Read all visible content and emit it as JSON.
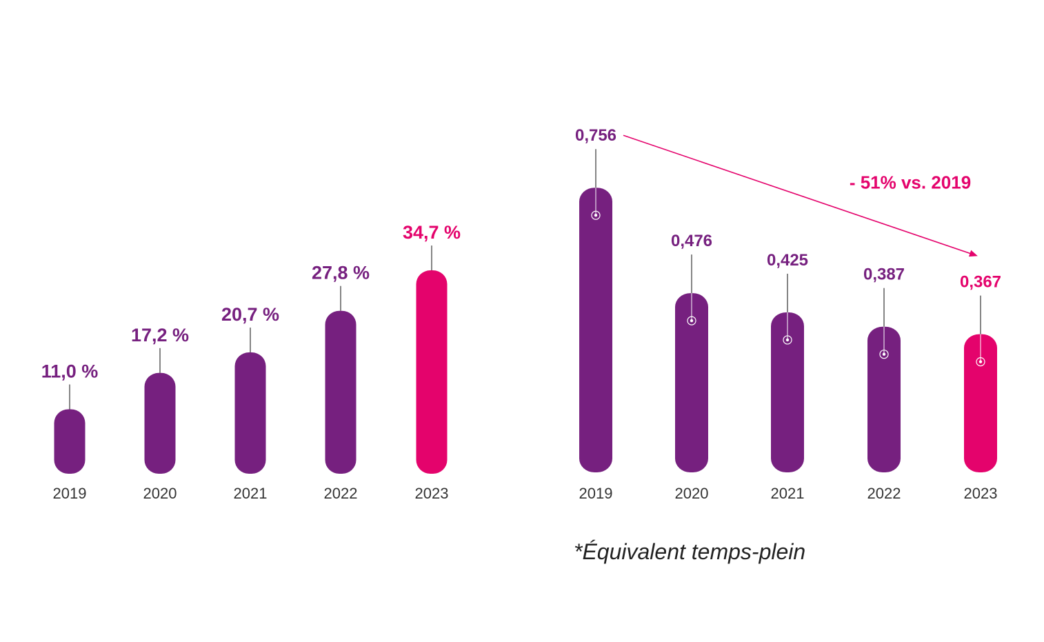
{
  "colors": {
    "bar": "#76207f",
    "highlight": "#e4036c",
    "tick": "#333333",
    "connector": "#333333"
  },
  "chart_data": [
    {
      "type": "bar",
      "categories": [
        "2019",
        "2020",
        "2021",
        "2022",
        "2023"
      ],
      "values": [
        11.0,
        17.2,
        20.7,
        27.8,
        34.7
      ],
      "data_labels": [
        "11,0 %",
        "17,2 %",
        "20,7 %",
        "27,8 %",
        "34,7 %"
      ],
      "highlight_index": 4,
      "ylim": [
        0,
        35
      ],
      "grid": false
    },
    {
      "type": "bar",
      "categories": [
        "2019",
        "2020",
        "2021",
        "2022",
        "2023"
      ],
      "values": [
        0.756,
        0.476,
        0.425,
        0.387,
        0.367
      ],
      "data_labels": [
        "0,756",
        "0,476",
        "0,425",
        "0,387",
        "0,367"
      ],
      "highlight_index": 4,
      "ylim": [
        0,
        0.756
      ],
      "grid": false,
      "annotation": {
        "text": "- 51% vs. 2019",
        "from_category": "2019",
        "to_category": "2023"
      }
    }
  ],
  "footnote": "*Équivalent temps-plein"
}
